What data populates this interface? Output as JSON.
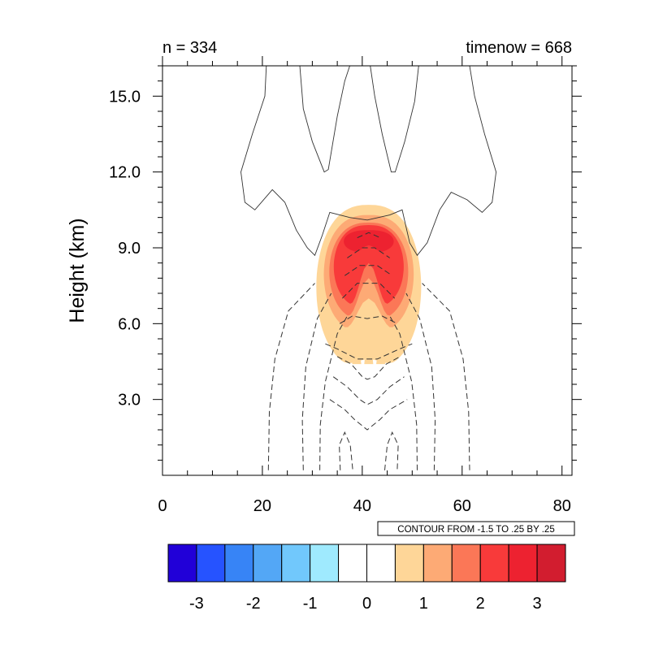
{
  "chart_data": {
    "type": "contour",
    "title_left": "n = 334",
    "title_right": "timenow = 668",
    "xlabel": "",
    "ylabel": "Height (km)",
    "xlim": [
      0,
      82
    ],
    "ylim": [
      0,
      16.2
    ],
    "x_ticks": [
      0,
      20,
      40,
      60,
      80
    ],
    "x_tick_labels": [
      "0",
      "20",
      "40",
      "60",
      "80"
    ],
    "y_ticks": [
      3,
      6,
      9,
      12,
      15
    ],
    "y_tick_labels": [
      "3.0",
      "6.0",
      "9.0",
      "12.0",
      "15.0"
    ],
    "contour_info": "CONTOUR FROM -1.5 TO .25 BY .25",
    "filled_field": {
      "center_x": 41.3,
      "levels": [
        {
          "value": 0.5,
          "color": "#fed698",
          "half_width": 10.5,
          "y_top": 10.7,
          "y_bottom": 4.2,
          "notch_y": 4.6
        },
        {
          "value": 1.0,
          "color": "#fdaa75",
          "half_width": 9.0,
          "y_top": 10.3,
          "y_bottom": 5.6,
          "notch_y": 7.0
        },
        {
          "value": 1.5,
          "color": "#fb7757",
          "half_width": 7.9,
          "y_top": 10.0,
          "y_bottom": 6.1,
          "notch_y": 7.8
        },
        {
          "value": 2.5,
          "color": "#f83a3a",
          "half_width": 7.0,
          "y_top": 9.9,
          "y_bottom": 6.6,
          "notch_y": 8.4
        },
        {
          "value": 3.0,
          "color": "#ed2230",
          "half_width": 5.0,
          "y_top": 9.7,
          "y_bottom": 8.8,
          "notch_y": 9.1
        }
      ]
    },
    "line_contours": {
      "solid_level": 0.25,
      "dashed_levels": [
        -1.5,
        -1.25,
        -1.0,
        -0.75,
        -0.5,
        -0.25
      ]
    },
    "colorbar": {
      "colors": [
        "#2100d8",
        "#2653ff",
        "#3784f6",
        "#53a7f6",
        "#71c8fc",
        "#9feafe",
        "#ffffff",
        "#ffffff",
        "#fed698",
        "#fdaa75",
        "#fb7757",
        "#f83a3a",
        "#ed2230",
        "#d21d2f"
      ],
      "tick_labels": [
        "-3",
        "-2",
        "-1",
        "0",
        "1",
        "2",
        "3"
      ]
    }
  }
}
